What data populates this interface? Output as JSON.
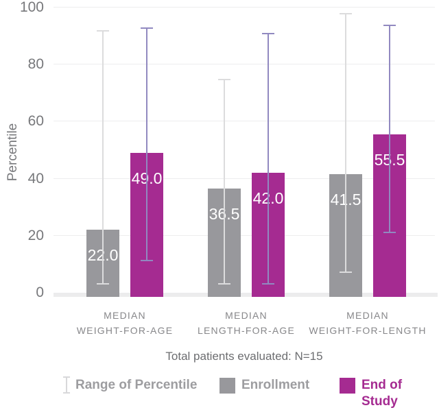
{
  "chart_data": {
    "type": "bar",
    "title": "",
    "xlabel": "",
    "ylabel": "Percentile",
    "ylim": [
      0,
      100
    ],
    "yticks": [
      0,
      20,
      40,
      60,
      80,
      100
    ],
    "grid": true,
    "legend_position": "bottom",
    "categories": [
      {
        "line1": "MEDIAN",
        "line2": "WEIGHT-FOR-AGE"
      },
      {
        "line1": "MEDIAN",
        "line2": "LENGTH-FOR-AGE"
      },
      {
        "line1": "MEDIAN",
        "line2": "WEIGHT-FOR-LENGTH"
      }
    ],
    "series": [
      {
        "name": "Enrollment",
        "color": "#98989C",
        "error_color": "#DCDCDD",
        "values": [
          22.0,
          36.5,
          41.5
        ],
        "labels": [
          "22.0",
          "36.5",
          "41.5"
        ],
        "range_low": [
          3,
          3,
          7
        ],
        "range_high": [
          92,
          75,
          98
        ]
      },
      {
        "name": "End of Study",
        "color": "#A52B91",
        "error_color": "#9189C0",
        "values": [
          49.0,
          42.0,
          55.5
        ],
        "labels": [
          "49.0",
          "42.0",
          "55.5"
        ],
        "range_low": [
          11,
          3,
          21
        ],
        "range_high": [
          93,
          91,
          94
        ]
      }
    ]
  },
  "caption": "Total patients evaluated: N=15",
  "legend": {
    "range_label": "Range of Percentile",
    "enrollment_label": "Enrollment",
    "end_of_study_label": "End of Study"
  },
  "colors": {
    "gridline": "#EDEDEE",
    "band": "#ECECED",
    "axis_text": "#77787B",
    "category_text": "#87878A",
    "caption_text": "#6C6D70",
    "legend_gray_text": "#9D9DA0",
    "bar_value_text": "#FFFFFF",
    "range_icon": "#D8D8DA"
  }
}
